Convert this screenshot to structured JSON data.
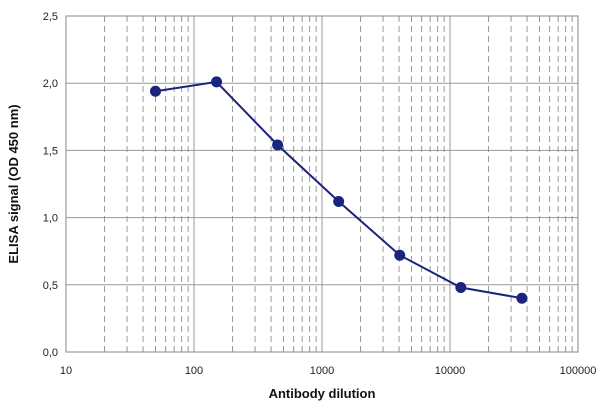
{
  "chart_data": {
    "type": "line",
    "xscale": "log",
    "xlabel": "Antibody dilution",
    "ylabel": "ELISA signal (OD 450 nm)",
    "xlim": [
      10,
      100000
    ],
    "ylim": [
      0,
      2.5
    ],
    "grid": true,
    "x_ticks": [
      "10",
      "100",
      "1000",
      "10000",
      "100000"
    ],
    "y_ticks": [
      "0,0",
      "0,5",
      "1,0",
      "1,5",
      "2,0",
      "2,5"
    ],
    "series": [
      {
        "x": [
          50,
          150,
          450,
          1350,
          4050,
          12150,
          36450
        ],
        "y": [
          1.94,
          2.01,
          1.54,
          1.12,
          0.72,
          0.48,
          0.4
        ],
        "color": "#1a237e"
      }
    ]
  }
}
